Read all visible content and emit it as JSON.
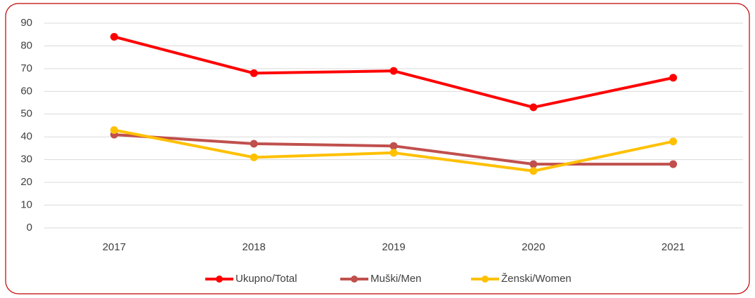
{
  "chart_data": {
    "type": "line",
    "categories": [
      "2017",
      "2018",
      "2019",
      "2020",
      "2021"
    ],
    "series": [
      {
        "name": "Ukupno/Total",
        "color": "#ff0000",
        "values": [
          84,
          68,
          69,
          53,
          66
        ]
      },
      {
        "name": "Muški/Men",
        "color": "#c0504d",
        "values": [
          41,
          37,
          36,
          28,
          28
        ]
      },
      {
        "name": "Ženski/Women",
        "color": "#ffc000",
        "values": [
          43,
          31,
          33,
          25,
          38
        ]
      }
    ],
    "ylim": [
      0,
      90
    ],
    "yticks": [
      0,
      10,
      20,
      30,
      40,
      50,
      60,
      70,
      80,
      90
    ],
    "grid": true,
    "legend": "bottom"
  }
}
